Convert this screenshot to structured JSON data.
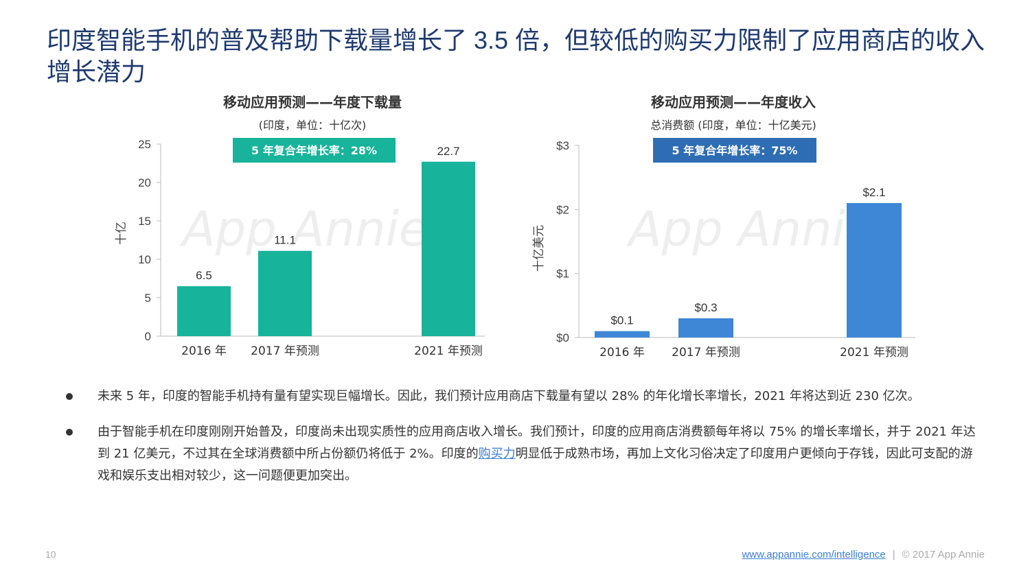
{
  "title": "印度智能手机的普及帮助下载量增长了 3.5 倍，但较低的购买力限制了应用商店的收入增长潜力",
  "watermark": "App Annie",
  "chart_data": [
    {
      "type": "bar",
      "title": "移动应用预测——年度下载量",
      "subtitle": "(印度，单位：十亿次)",
      "ylabel": "十亿",
      "categories": [
        "2016 年",
        "2017 年预测",
        "2021 年预测"
      ],
      "values": [
        6.5,
        11.1,
        22.7
      ],
      "value_labels": [
        "6.5",
        "11.1",
        "22.7"
      ],
      "ylim": [
        0,
        25
      ],
      "yticks": [
        0,
        5,
        10,
        15,
        20,
        25
      ],
      "ytick_labels": [
        "0",
        "5",
        "10",
        "15",
        "20",
        "25"
      ],
      "badge": "5 年复合年增长率：28%",
      "color": "#17b39a",
      "badge_color": "#17b39a",
      "grid": false
    },
    {
      "type": "bar",
      "title": "移动应用预测——年度收入",
      "subtitle": "总消费额 (印度，单位：十亿美元)",
      "ylabel": "十亿美元",
      "categories": [
        "2016 年",
        "2017 年预测",
        "2021 年预测"
      ],
      "values": [
        0.1,
        0.3,
        2.1
      ],
      "value_labels": [
        "$0.1",
        "$0.3",
        "$2.1"
      ],
      "ylim": [
        0,
        3
      ],
      "yticks": [
        0,
        1,
        2,
        3
      ],
      "ytick_labels": [
        "$0",
        "$1",
        "$2",
        "$3"
      ],
      "badge": "5 年复合年增长率：75%",
      "color": "#3d87d6",
      "badge_color": "#2e6db3",
      "grid": false
    }
  ],
  "bullets": [
    {
      "text": "未来 5 年，印度的智能手机持有量有望实现巨幅增长。因此，我们预计应用商店下载量有望以 28% 的年化增长率增长，2021 年将达到近 230 亿次。"
    },
    {
      "text_before": "由于智能手机在印度刚刚开始普及，印度尚未出现实质性的应用商店收入增长。我们预计，印度的应用商店消费额每年将以 75% 的增长率增长，并于 2021 年达到 21 亿美元，不过其在全球消费额中所占份额仍将低于 2%。印度的",
      "link": "购买力",
      "text_after": "明显低于成熟市场，再加上文化习俗决定了印度用户更倾向于存钱，因此可支配的游戏和娱乐支出相对较少，这一问题便更加突出。"
    }
  ],
  "footer": {
    "page_number": "10",
    "url": "www.appannie.com/intelligence",
    "separator": "|",
    "copyright": "© 2017 App Annie"
  }
}
